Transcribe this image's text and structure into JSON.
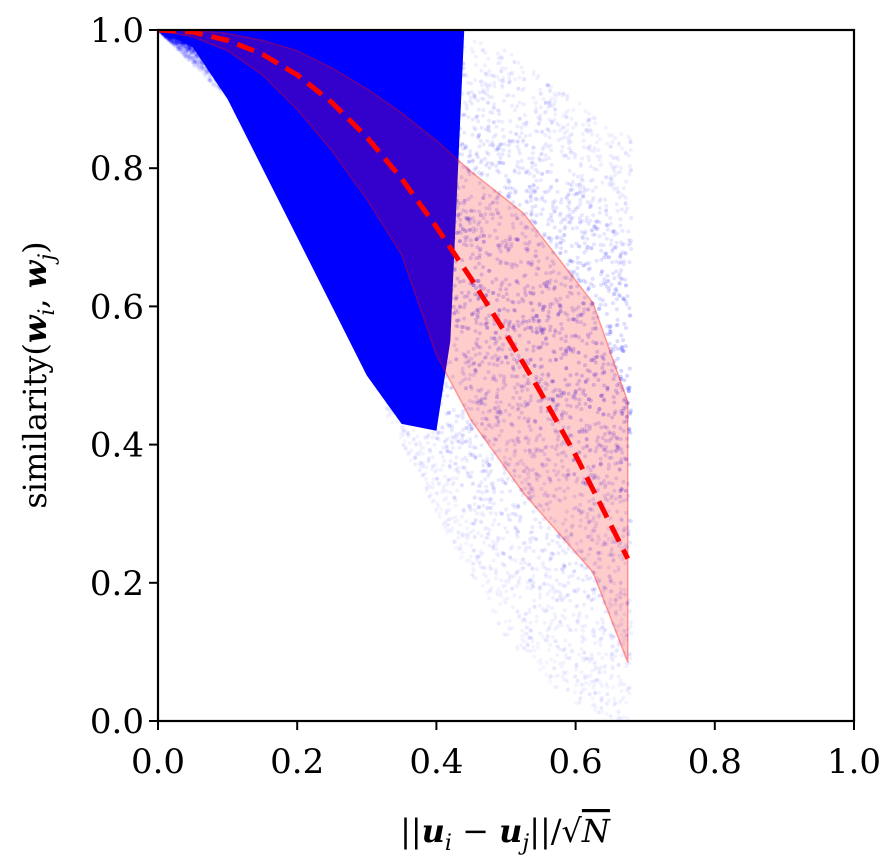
{
  "chart_data": {
    "type": "scatter",
    "title": "",
    "xlabel": "||u_i − u_j||/√N",
    "ylabel": "similarity(w_i, w_j)",
    "xlim": [
      0.0,
      1.0
    ],
    "ylim": [
      0.0,
      1.0
    ],
    "x_ticks": [
      "0.0",
      "0.2",
      "0.4",
      "0.6",
      "0.8",
      "1.0"
    ],
    "y_ticks": [
      "0.0",
      "0.2",
      "0.4",
      "0.6",
      "0.8",
      "1.0"
    ],
    "grid": false,
    "legend": "none",
    "series": [
      {
        "kind": "scatter-density",
        "color": "#0000ff",
        "description_points": {
          "x": [
            0.0,
            0.1,
            0.2,
            0.3,
            0.4,
            0.5,
            0.6,
            0.66
          ],
          "y_upper": [
            1.0,
            1.0,
            1.0,
            1.0,
            1.0,
            0.97,
            0.9,
            0.85
          ],
          "y_lower": [
            1.0,
            0.9,
            0.72,
            0.5,
            0.3,
            0.12,
            0.02,
            0.0
          ]
        }
      },
      {
        "kind": "mean-line",
        "style": "dashed",
        "color": "#ff0000",
        "x": [
          0.0,
          0.05,
          0.1,
          0.15,
          0.2,
          0.25,
          0.3,
          0.35,
          0.4,
          0.45,
          0.5,
          0.55,
          0.6,
          0.65,
          0.675
        ],
        "y": [
          1.0,
          0.997,
          0.985,
          0.965,
          0.935,
          0.895,
          0.845,
          0.785,
          0.715,
          0.64,
          0.56,
          0.475,
          0.385,
          0.285,
          0.235
        ]
      },
      {
        "kind": "band",
        "color": "#ff0000",
        "opacity": 0.2,
        "x": [
          0.0,
          0.05,
          0.1,
          0.15,
          0.2,
          0.25,
          0.3,
          0.35,
          0.4,
          0.45,
          0.525,
          0.625,
          0.675
        ],
        "upper": [
          1.0,
          1.0,
          0.995,
          0.985,
          0.97,
          0.945,
          0.915,
          0.88,
          0.84,
          0.795,
          0.735,
          0.605,
          0.462
        ],
        "lower": [
          1.0,
          0.99,
          0.97,
          0.935,
          0.885,
          0.825,
          0.755,
          0.675,
          0.53,
          0.435,
          0.33,
          0.215,
          0.085
        ]
      }
    ]
  }
}
